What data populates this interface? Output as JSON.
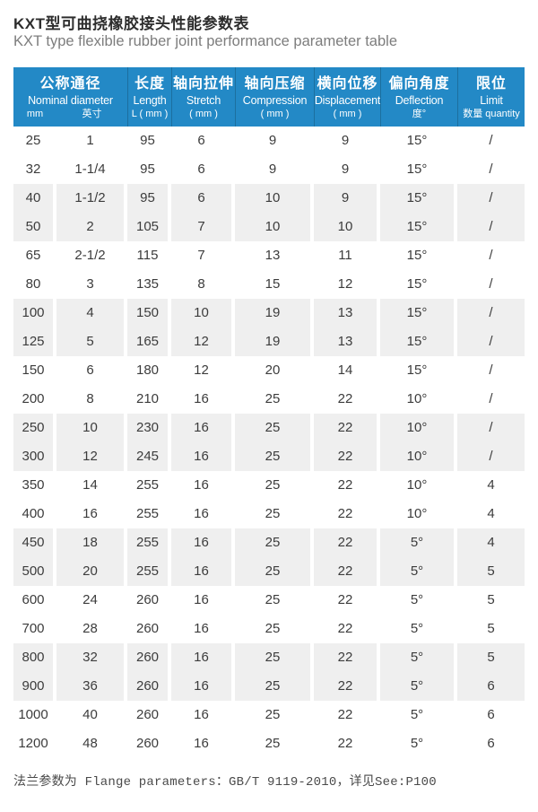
{
  "page": {
    "title_zh": "KXT型可曲挠橡胶接头性能参数表",
    "title_en": "KXT type flexible rubber joint performance parameter table"
  },
  "colors": {
    "header_bg": "#2389c6",
    "header_divider": "#1c6f9f",
    "stripe_gray": "#efefef",
    "body_text": "#3c3c3c"
  },
  "table": {
    "columns": [
      {
        "zh": "公称通径",
        "en": "Nominal diameter",
        "sub_left": "mm",
        "sub_right": "英寸"
      },
      {
        "zh": "长度",
        "en": "Length",
        "sub": "L ( mm )"
      },
      {
        "zh": "轴向拉伸",
        "en": "Stretch",
        "sub": "( mm )"
      },
      {
        "zh": "轴向压缩",
        "en": "Compression",
        "sub": "( mm )"
      },
      {
        "zh": "横向位移",
        "en": "Displacement",
        "sub": "( mm )"
      },
      {
        "zh": "偏向角度",
        "en": "Deflection",
        "sub": "度°"
      },
      {
        "zh": "限位",
        "en": "Limit",
        "sub": "数量 quantity"
      }
    ],
    "rows": [
      [
        "25",
        "1",
        "95",
        "6",
        "9",
        "9",
        "15°",
        "/"
      ],
      [
        "32",
        "1-1/4",
        "95",
        "6",
        "9",
        "9",
        "15°",
        "/"
      ],
      [
        "40",
        "1-1/2",
        "95",
        "6",
        "10",
        "9",
        "15°",
        "/"
      ],
      [
        "50",
        "2",
        "105",
        "7",
        "10",
        "10",
        "15°",
        "/"
      ],
      [
        "65",
        "2-1/2",
        "115",
        "7",
        "13",
        "11",
        "15°",
        "/"
      ],
      [
        "80",
        "3",
        "135",
        "8",
        "15",
        "12",
        "15°",
        "/"
      ],
      [
        "100",
        "4",
        "150",
        "10",
        "19",
        "13",
        "15°",
        "/"
      ],
      [
        "125",
        "5",
        "165",
        "12",
        "19",
        "13",
        "15°",
        "/"
      ],
      [
        "150",
        "6",
        "180",
        "12",
        "20",
        "14",
        "15°",
        "/"
      ],
      [
        "200",
        "8",
        "210",
        "16",
        "25",
        "22",
        "10°",
        "/"
      ],
      [
        "250",
        "10",
        "230",
        "16",
        "25",
        "22",
        "10°",
        "/"
      ],
      [
        "300",
        "12",
        "245",
        "16",
        "25",
        "22",
        "10°",
        "/"
      ],
      [
        "350",
        "14",
        "255",
        "16",
        "25",
        "22",
        "10°",
        "4"
      ],
      [
        "400",
        "16",
        "255",
        "16",
        "25",
        "22",
        "10°",
        "4"
      ],
      [
        "450",
        "18",
        "255",
        "16",
        "25",
        "22",
        "5°",
        "4"
      ],
      [
        "500",
        "20",
        "255",
        "16",
        "25",
        "22",
        "5°",
        "5"
      ],
      [
        "600",
        "24",
        "260",
        "16",
        "25",
        "22",
        "5°",
        "5"
      ],
      [
        "700",
        "28",
        "260",
        "16",
        "25",
        "22",
        "5°",
        "5"
      ],
      [
        "800",
        "32",
        "260",
        "16",
        "25",
        "22",
        "5°",
        "5"
      ],
      [
        "900",
        "36",
        "260",
        "16",
        "25",
        "22",
        "5°",
        "6"
      ],
      [
        "1000",
        "40",
        "260",
        "16",
        "25",
        "22",
        "5°",
        "6"
      ],
      [
        "1200",
        "48",
        "260",
        "16",
        "25",
        "22",
        "5°",
        "6"
      ]
    ]
  },
  "footer": {
    "text": "法兰参数为 Flange parameters：GB/T 9119-2010，详见See:P100"
  }
}
